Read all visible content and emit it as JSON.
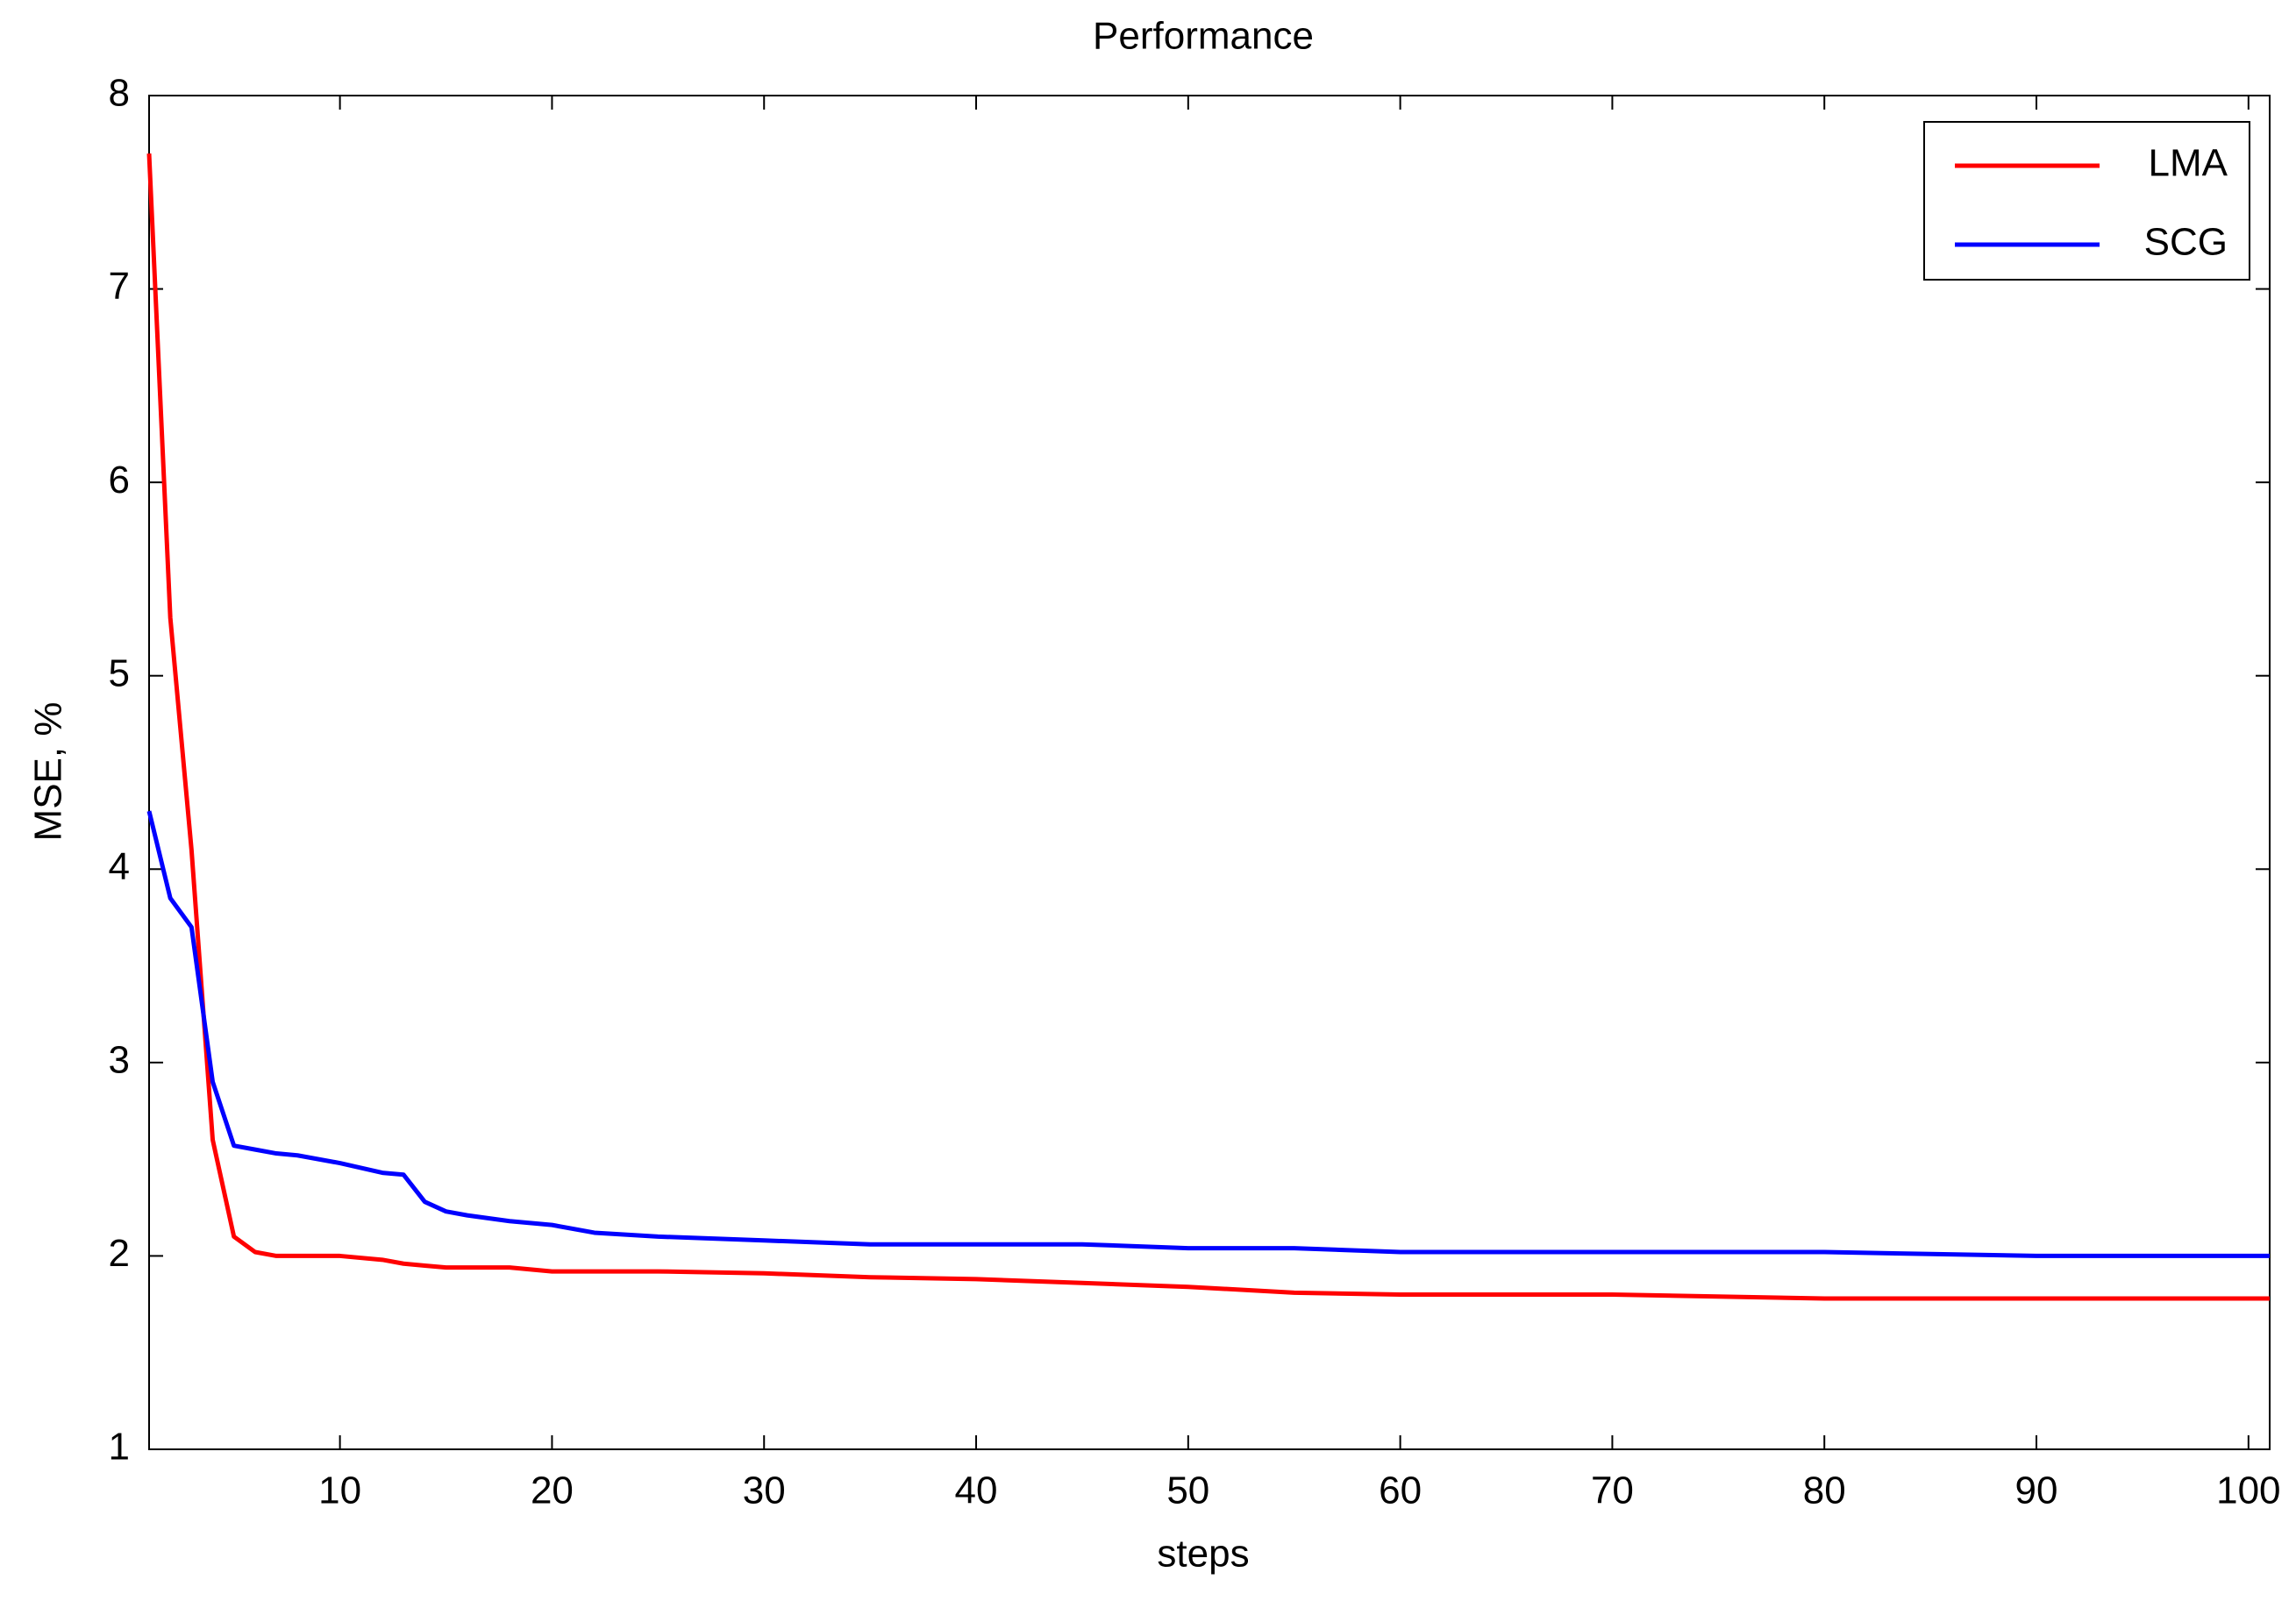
{
  "chart_data": {
    "type": "line",
    "title": "Performance",
    "x_label": "steps",
    "y_label": "MSE, %",
    "x": [
      1,
      2,
      3,
      4,
      5,
      6,
      7,
      8,
      10,
      12,
      13,
      14,
      15,
      16,
      18,
      20,
      22,
      25,
      30,
      35,
      40,
      45,
      50,
      55,
      60,
      70,
      80,
      90,
      101
    ],
    "series": [
      {
        "name": "LMA",
        "color": "#ff0000",
        "values": [
          7.7,
          5.3,
          4.1,
          2.6,
          2.1,
          2.02,
          2.0,
          2.0,
          2.0,
          1.98,
          1.96,
          1.95,
          1.94,
          1.94,
          1.94,
          1.92,
          1.92,
          1.92,
          1.91,
          1.89,
          1.88,
          1.86,
          1.84,
          1.81,
          1.8,
          1.8,
          1.78,
          1.78,
          1.78
        ]
      },
      {
        "name": "SCG",
        "color": "#0000ff",
        "values": [
          4.3,
          3.85,
          3.7,
          2.9,
          2.57,
          2.55,
          2.53,
          2.52,
          2.48,
          2.43,
          2.42,
          2.28,
          2.23,
          2.21,
          2.18,
          2.16,
          2.12,
          2.1,
          2.08,
          2.06,
          2.06,
          2.06,
          2.04,
          2.04,
          2.02,
          2.02,
          2.02,
          2.0,
          2.0
        ]
      }
    ],
    "xlim": [
      1,
      101
    ],
    "xticks": [
      10,
      20,
      30,
      40,
      50,
      60,
      70,
      80,
      90,
      100
    ],
    "ylim": [
      1,
      8
    ],
    "yticks": [
      1,
      2,
      3,
      4,
      5,
      6,
      7,
      8
    ],
    "grid": false,
    "legend": "top-right"
  }
}
